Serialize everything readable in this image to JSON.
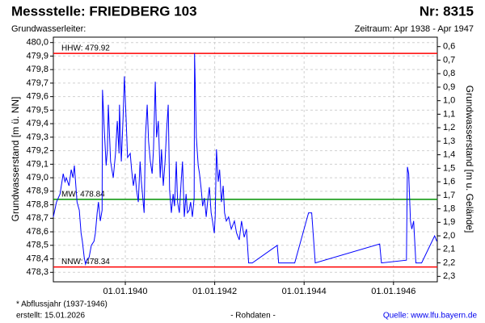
{
  "chart_data": {
    "type": "line",
    "title": "Messstelle: FRIEDBERG 103",
    "number": "Nr: 8315",
    "subtitle": "Grundwasserleiter:",
    "period": "Zeitraum: Apr 1938 - Apr 1947",
    "y_label": "Grundwasserstand [m ü. NN]",
    "y2_label": "Grundwasserstand [m u. Gelände]",
    "footnote": "* Abflussjahr (1937-1946)",
    "created": "erstellt:  15.01.2026",
    "data_kind": "- Rohdaten -",
    "source": "Quelle: www.lfu.bayern.de",
    "xlim": [
      1938.39,
      1946.98
    ],
    "xticks": [
      {
        "value": 1940,
        "label": "01.01.1940"
      },
      {
        "value": 1942,
        "label": "01.01.1942"
      },
      {
        "value": 1944,
        "label": "01.01.1944"
      },
      {
        "value": 1946,
        "label": "01.01.1946"
      }
    ],
    "ylim": [
      478.23,
      480.04
    ],
    "yticks": [
      {
        "value": 480.0,
        "label": "480,0"
      },
      {
        "value": 479.9,
        "label": "479,9"
      },
      {
        "value": 479.8,
        "label": "479,8"
      },
      {
        "value": 479.7,
        "label": "479,7"
      },
      {
        "value": 479.6,
        "label": "479,6"
      },
      {
        "value": 479.5,
        "label": "479,5"
      },
      {
        "value": 479.4,
        "label": "479,4"
      },
      {
        "value": 479.3,
        "label": "479,3"
      },
      {
        "value": 479.2,
        "label": "479,2"
      },
      {
        "value": 479.1,
        "label": "479,1"
      },
      {
        "value": 479.0,
        "label": "479,0"
      },
      {
        "value": 478.9,
        "label": "478,9"
      },
      {
        "value": 478.8,
        "label": "478,8"
      },
      {
        "value": 478.7,
        "label": "478,7"
      },
      {
        "value": 478.6,
        "label": "478,6"
      },
      {
        "value": 478.5,
        "label": "478,5"
      },
      {
        "value": 478.4,
        "label": "478,4"
      },
      {
        "value": 478.3,
        "label": "478,3"
      }
    ],
    "y2lim": [
      2.34,
      0.53
    ],
    "y2ticks": [
      {
        "value": 0.6,
        "label": "0,6"
      },
      {
        "value": 0.7,
        "label": "0,7"
      },
      {
        "value": 0.8,
        "label": "0,8"
      },
      {
        "value": 0.9,
        "label": "0,9"
      },
      {
        "value": 1.0,
        "label": "1,0"
      },
      {
        "value": 1.1,
        "label": "1,1"
      },
      {
        "value": 1.2,
        "label": "1,2"
      },
      {
        "value": 1.3,
        "label": "1,3"
      },
      {
        "value": 1.4,
        "label": "1,4"
      },
      {
        "value": 1.5,
        "label": "1,5"
      },
      {
        "value": 1.6,
        "label": "1,6"
      },
      {
        "value": 1.7,
        "label": "1,7"
      },
      {
        "value": 1.8,
        "label": "1,8"
      },
      {
        "value": 1.9,
        "label": "1,9"
      },
      {
        "value": 2.0,
        "label": "2,0"
      },
      {
        "value": 2.1,
        "label": "2,1"
      },
      {
        "value": 2.2,
        "label": "2,2"
      },
      {
        "value": 2.3,
        "label": "2,3"
      }
    ],
    "grid": true,
    "reference_lines": [
      {
        "label": "HHW: 479.92",
        "value": 479.92,
        "color": "#ff0000"
      },
      {
        "label": "MW: 478.84",
        "value": 478.84,
        "color": "#009000"
      },
      {
        "label": "NNW: 478.34",
        "value": 478.34,
        "color": "#ff0000"
      }
    ],
    "x": [
      1938.39,
      1938.46,
      1938.54,
      1938.61,
      1938.65,
      1938.68,
      1938.74,
      1938.79,
      1938.83,
      1938.86,
      1938.92,
      1938.97,
      1939.01,
      1939.04,
      1939.08,
      1939.11,
      1939.15,
      1939.19,
      1939.24,
      1939.3,
      1939.33,
      1939.37,
      1939.4,
      1939.44,
      1939.48,
      1939.49,
      1939.53,
      1939.57,
      1939.6,
      1939.62,
      1939.67,
      1939.73,
      1939.78,
      1939.82,
      1939.86,
      1939.87,
      1939.91,
      1939.95,
      1939.98,
      1940.02,
      1940.05,
      1940.11,
      1940.14,
      1940.18,
      1940.22,
      1940.25,
      1940.29,
      1940.33,
      1940.36,
      1940.42,
      1940.45,
      1940.49,
      1940.52,
      1940.56,
      1940.6,
      1940.63,
      1940.67,
      1940.7,
      1940.74,
      1940.78,
      1940.81,
      1940.85,
      1940.89,
      1940.92,
      1940.96,
      1940.99,
      1941.03,
      1941.07,
      1941.1,
      1941.14,
      1941.17,
      1941.21,
      1941.25,
      1941.28,
      1941.32,
      1941.36,
      1941.39,
      1941.43,
      1941.46,
      1941.5,
      1941.54,
      1941.55,
      1941.59,
      1941.63,
      1941.66,
      1941.7,
      1941.73,
      1941.77,
      1941.81,
      1941.84,
      1941.88,
      1941.92,
      1941.95,
      1941.99,
      1942.01,
      1942.04,
      1942.08,
      1942.11,
      1942.15,
      1942.19,
      1942.22,
      1942.26,
      1942.31,
      1942.37,
      1942.44,
      1942.49,
      1942.55,
      1942.6,
      1942.66,
      1942.71,
      1942.76,
      1942.84,
      1943.4,
      1943.43,
      1943.79,
      1944.1,
      1944.17,
      1944.25,
      1945.69,
      1945.73,
      1946.29,
      1946.31,
      1946.34,
      1946.38,
      1946.41,
      1946.45,
      1946.5,
      1946.63,
      1946.92,
      1946.97
    ],
    "series": [
      {
        "name": "Grundwasserstand",
        "color": "#0000ff",
        "values": [
          478.71,
          478.82,
          478.88,
          479.03,
          478.97,
          479.0,
          478.94,
          479.06,
          479.0,
          479.09,
          478.82,
          478.76,
          478.59,
          478.53,
          478.41,
          478.36,
          478.4,
          478.41,
          478.5,
          478.53,
          478.59,
          478.74,
          478.82,
          478.68,
          478.76,
          479.65,
          479.36,
          479.09,
          479.21,
          479.54,
          479.12,
          479.0,
          479.18,
          479.42,
          479.18,
          479.54,
          479.12,
          479.45,
          479.75,
          479.42,
          479.15,
          479.18,
          479.06,
          478.94,
          479.03,
          478.91,
          478.82,
          479.12,
          478.97,
          478.74,
          479.3,
          479.54,
          479.27,
          479.12,
          479.03,
          479.21,
          479.71,
          479.3,
          479.42,
          479.0,
          479.21,
          478.94,
          479.12,
          479.33,
          479.54,
          478.91,
          478.74,
          478.88,
          478.79,
          479.12,
          478.82,
          478.74,
          478.97,
          479.12,
          478.71,
          478.88,
          478.74,
          478.76,
          478.82,
          478.71,
          478.85,
          479.92,
          479.3,
          479.09,
          479.03,
          478.91,
          478.79,
          478.85,
          478.71,
          478.82,
          478.93,
          478.74,
          478.68,
          478.59,
          478.71,
          479.21,
          478.97,
          479.06,
          478.82,
          478.94,
          478.74,
          478.68,
          478.71,
          478.62,
          478.68,
          478.59,
          478.54,
          478.68,
          478.56,
          478.62,
          478.37,
          478.37,
          478.5,
          478.37,
          478.37,
          478.74,
          478.74,
          478.37,
          478.51,
          478.37,
          478.39,
          479.08,
          479.03,
          478.68,
          478.62,
          478.68,
          478.37,
          478.37,
          478.57,
          478.53
        ]
      }
    ]
  }
}
